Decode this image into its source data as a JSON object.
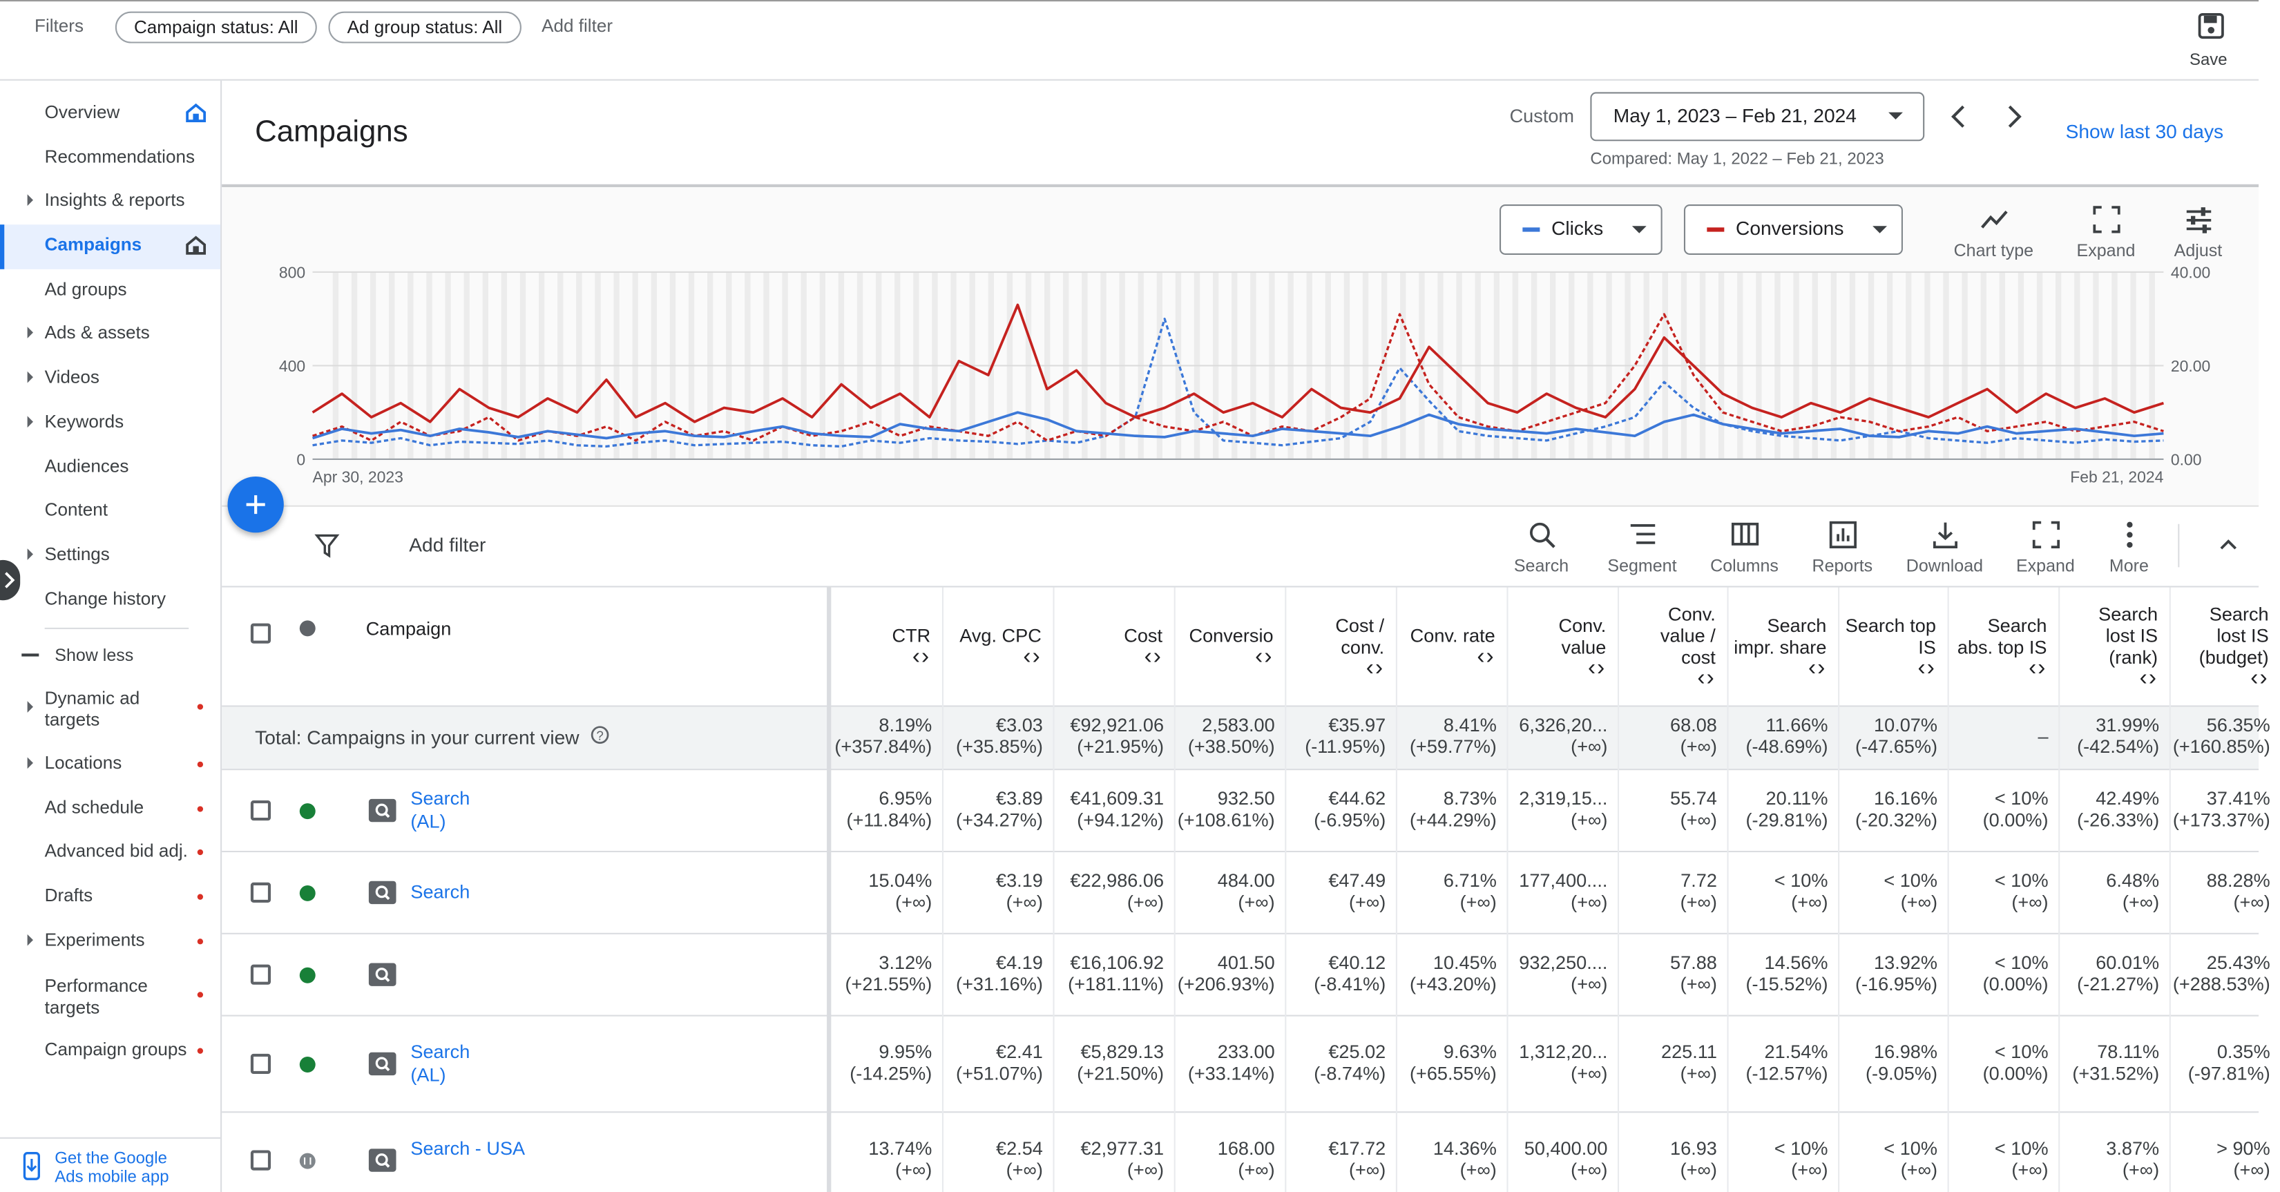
{
  "topbar": {
    "filters_label": "Filters",
    "chips": [
      "Campaign status: All",
      "Ad group status: All"
    ],
    "add_filter": "Add filter",
    "save": "Save"
  },
  "sidebar": {
    "items": [
      {
        "label": "Overview",
        "home": true
      },
      {
        "label": "Recommendations"
      },
      {
        "label": "Insights & reports",
        "expandable": true
      },
      {
        "label": "Campaigns",
        "home": true,
        "selected": true
      },
      {
        "label": "Ad groups"
      },
      {
        "label": "Ads & assets",
        "expandable": true
      },
      {
        "label": "Videos",
        "expandable": true
      },
      {
        "label": "Keywords",
        "expandable": true
      },
      {
        "label": "Audiences"
      },
      {
        "label": "Content"
      },
      {
        "label": "Settings",
        "expandable": true
      },
      {
        "label": "Change history"
      }
    ],
    "show_less": "Show less",
    "more_items": [
      {
        "label": "Dynamic ad targets",
        "expandable": true,
        "dot": true
      },
      {
        "label": "Locations",
        "expandable": true,
        "dot": true
      },
      {
        "label": "Ad schedule",
        "dot": true
      },
      {
        "label": "Advanced bid adj.",
        "dot": true
      },
      {
        "label": "Drafts",
        "dot": true
      },
      {
        "label": "Experiments",
        "expandable": true,
        "dot": true
      },
      {
        "label": "Performance targets",
        "dot": true
      },
      {
        "label": "Campaign groups",
        "dot": true
      }
    ],
    "footer": "Get the Google Ads mobile app"
  },
  "header": {
    "title": "Campaigns",
    "range_type": "Custom",
    "date_range": "May 1, 2023 – Feb 21, 2024",
    "compared": "Compared: May 1, 2022 – Feb 21, 2023",
    "show_last": "Show last 30 days"
  },
  "chart_controls": {
    "metric_buttons": [
      "Clicks",
      "Conversions"
    ],
    "tools": [
      "Chart type",
      "Expand",
      "Adjust"
    ]
  },
  "chart_data": {
    "type": "line",
    "xlabels": [
      "Apr 30, 2023",
      "Feb 21, 2024"
    ],
    "ylim": [
      0,
      800
    ],
    "yticks": [
      0,
      400,
      800
    ],
    "y2lim": [
      0,
      40
    ],
    "y2ticks": [
      {
        "value": 0,
        "label": "0.00"
      },
      {
        "value": 20,
        "label": "20.00"
      },
      {
        "value": 40,
        "label": "40.00"
      }
    ],
    "grid": true,
    "series": [
      {
        "name": "Clicks",
        "color": "#3c78d8",
        "values": [
          90,
          130,
          110,
          125,
          100,
          130,
          115,
          95,
          120,
          105,
          90,
          110,
          120,
          100,
          95,
          120,
          140,
          110,
          100,
          95,
          150,
          130,
          120,
          160,
          200,
          170,
          120,
          110,
          100,
          95,
          120,
          110,
          100,
          130,
          120,
          110,
          100,
          140,
          190,
          150,
          130,
          120,
          110,
          130,
          115,
          100,
          160,
          190,
          150,
          130,
          110,
          120,
          130,
          100,
          95,
          120,
          110,
          140,
          110,
          120,
          130,
          115,
          100,
          110
        ]
      },
      {
        "color": "#3c78d8",
        "dashed": true,
        "values": [
          60,
          80,
          70,
          90,
          60,
          75,
          70,
          65,
          80,
          60,
          55,
          70,
          80,
          60,
          65,
          70,
          75,
          60,
          55,
          80,
          70,
          90,
          80,
          75,
          65,
          80,
          70,
          100,
          180,
          600,
          200,
          80,
          70,
          60,
          75,
          90,
          160,
          390,
          250,
          120,
          100,
          90,
          80,
          110,
          140,
          180,
          330,
          220,
          150,
          120,
          100,
          90,
          80,
          100,
          120,
          90,
          80,
          70,
          90,
          80,
          70,
          85,
          75,
          80
        ]
      },
      {
        "name": "Conversions",
        "color": "#c5221f",
        "axis": "y2",
        "values": [
          10,
          14,
          9,
          12,
          8,
          15,
          11,
          9,
          13,
          10,
          17,
          9,
          12,
          8,
          11,
          10,
          13,
          9,
          16,
          11,
          14,
          9,
          21,
          18,
          33,
          15,
          19,
          12,
          9,
          11,
          14,
          10,
          12,
          9,
          15,
          11,
          10,
          13,
          24,
          18,
          12,
          10,
          14,
          11,
          9,
          15,
          26,
          20,
          14,
          11,
          9,
          12,
          10,
          13,
          11,
          9,
          12,
          15,
          10,
          14,
          11,
          13,
          10,
          12
        ]
      },
      {
        "color": "#c5221f",
        "axis": "y2",
        "dashed": true,
        "values": [
          5,
          7,
          4,
          8,
          5,
          6,
          9,
          4,
          6,
          5,
          7,
          4,
          8,
          5,
          6,
          4,
          7,
          5,
          6,
          8,
          5,
          7,
          6,
          5,
          8,
          4,
          6,
          5,
          9,
          7,
          6,
          8,
          5,
          7,
          6,
          9,
          13,
          31,
          16,
          9,
          7,
          6,
          8,
          10,
          12,
          20,
          31,
          18,
          10,
          8,
          6,
          7,
          9,
          8,
          6,
          7,
          9,
          6,
          7,
          8,
          6,
          7,
          8,
          6
        ]
      }
    ]
  },
  "toolbar": {
    "add_filter": "Add filter",
    "tools": [
      "Search",
      "Segment",
      "Columns",
      "Reports",
      "Download",
      "Expand",
      "More"
    ]
  },
  "table": {
    "headers": [
      "Campaign",
      "CTR",
      "Avg. CPC",
      "Cost",
      "Conversio",
      "Cost / conv.",
      "Conv. rate",
      "Conv. value",
      "Conv. value / cost",
      "Search impr. share",
      "Search top IS",
      "Search abs. top IS",
      "Search lost IS (rank)",
      "Search lost IS (budget)"
    ],
    "total": {
      "label": "Total: Campaigns in your current view",
      "cells": [
        [
          "8.19%",
          "(+357.84%)"
        ],
        [
          "€3.03",
          "(+35.85%)"
        ],
        [
          "€92,921.06",
          "(+21.95%)"
        ],
        [
          "2,583.00",
          "(+38.50%)"
        ],
        [
          "€35.97",
          "(-11.95%)"
        ],
        [
          "8.41%",
          "(+59.77%)"
        ],
        [
          "6,326,20...",
          "(+∞)"
        ],
        [
          "68.08",
          "(+∞)"
        ],
        [
          "11.66%",
          "(-48.69%)"
        ],
        [
          "10.07%",
          "(-47.65%)"
        ],
        [
          "–",
          null
        ],
        [
          "31.99%",
          "(-42.54%)"
        ],
        [
          "56.35%",
          "(+160.85%)"
        ]
      ]
    },
    "rows": [
      {
        "name": "Search (AL)",
        "status": "enabled",
        "cells": [
          [
            "6.95%",
            "(+11.84%)"
          ],
          [
            "€3.89",
            "(+34.27%)"
          ],
          [
            "€41,609.31",
            "(+94.12%)"
          ],
          [
            "932.50",
            "(+108.61%)"
          ],
          [
            "€44.62",
            "(-6.95%)"
          ],
          [
            "8.73%",
            "(+44.29%)"
          ],
          [
            "2,319,15...",
            "(+∞)"
          ],
          [
            "55.74",
            "(+∞)"
          ],
          [
            "20.11%",
            "(-29.81%)"
          ],
          [
            "16.16%",
            "(-20.32%)"
          ],
          [
            "< 10%",
            "(0.00%)"
          ],
          [
            "42.49%",
            "(-26.33%)"
          ],
          [
            "37.41%",
            "(+173.37%)"
          ]
        ]
      },
      {
        "name": "Search",
        "status": "enabled",
        "cells": [
          [
            "15.04%",
            "(+∞)"
          ],
          [
            "€3.19",
            "(+∞)"
          ],
          [
            "€22,986.06",
            "(+∞)"
          ],
          [
            "484.00",
            "(+∞)"
          ],
          [
            "€47.49",
            "(+∞)"
          ],
          [
            "6.71%",
            "(+∞)"
          ],
          [
            "177,400....",
            "(+∞)"
          ],
          [
            "7.72",
            "(+∞)"
          ],
          [
            "< 10%",
            "(+∞)"
          ],
          [
            "< 10%",
            "(+∞)"
          ],
          [
            "< 10%",
            "(+∞)"
          ],
          [
            "6.48%",
            "(+∞)"
          ],
          [
            "88.28%",
            "(+∞)"
          ]
        ]
      },
      {
        "name": null,
        "status": "enabled",
        "cells": [
          [
            "3.12%",
            "(+21.55%)"
          ],
          [
            "€4.19",
            "(+31.16%)"
          ],
          [
            "€16,106.92",
            "(+181.11%)"
          ],
          [
            "401.50",
            "(+206.93%)"
          ],
          [
            "€40.12",
            "(-8.41%)"
          ],
          [
            "10.45%",
            "(+43.20%)"
          ],
          [
            "932,250....",
            "(+∞)"
          ],
          [
            "57.88",
            "(+∞)"
          ],
          [
            "14.56%",
            "(-15.52%)"
          ],
          [
            "13.92%",
            "(-16.95%)"
          ],
          [
            "< 10%",
            "(0.00%)"
          ],
          [
            "60.01%",
            "(-21.27%)"
          ],
          [
            "25.43%",
            "(+288.53%)"
          ]
        ]
      },
      {
        "name": "Search (AL)",
        "status": "enabled",
        "cells": [
          [
            "9.95%",
            "(-14.25%)"
          ],
          [
            "€2.41",
            "(+51.07%)"
          ],
          [
            "€5,829.13",
            "(+21.50%)"
          ],
          [
            "233.00",
            "(+33.14%)"
          ],
          [
            "€25.02",
            "(-8.74%)"
          ],
          [
            "9.63%",
            "(+65.55%)"
          ],
          [
            "1,312,20...",
            "(+∞)"
          ],
          [
            "225.11",
            "(+∞)"
          ],
          [
            "21.54%",
            "(-12.57%)"
          ],
          [
            "16.98%",
            "(-9.05%)"
          ],
          [
            "< 10%",
            "(0.00%)"
          ],
          [
            "78.11%",
            "(+31.52%)"
          ],
          [
            "0.35%",
            "(-97.81%)"
          ]
        ]
      },
      {
        "name": "Search - USA",
        "status": "paused",
        "cells": [
          [
            "13.74%",
            "(+∞)"
          ],
          [
            "€2.54",
            "(+∞)"
          ],
          [
            "€2,977.31",
            "(+∞)"
          ],
          [
            "168.00",
            "(+∞)"
          ],
          [
            "€17.72",
            "(+∞)"
          ],
          [
            "14.36%",
            "(+∞)"
          ],
          [
            "50,400.00",
            "(+∞)"
          ],
          [
            "16.93",
            "(+∞)"
          ],
          [
            "< 10%",
            "(+∞)"
          ],
          [
            "< 10%",
            "(+∞)"
          ],
          [
            "< 10%",
            "(+∞)"
          ],
          [
            "3.87%",
            "(+∞)"
          ],
          [
            "> 90%",
            "(+∞)"
          ]
        ]
      }
    ]
  }
}
